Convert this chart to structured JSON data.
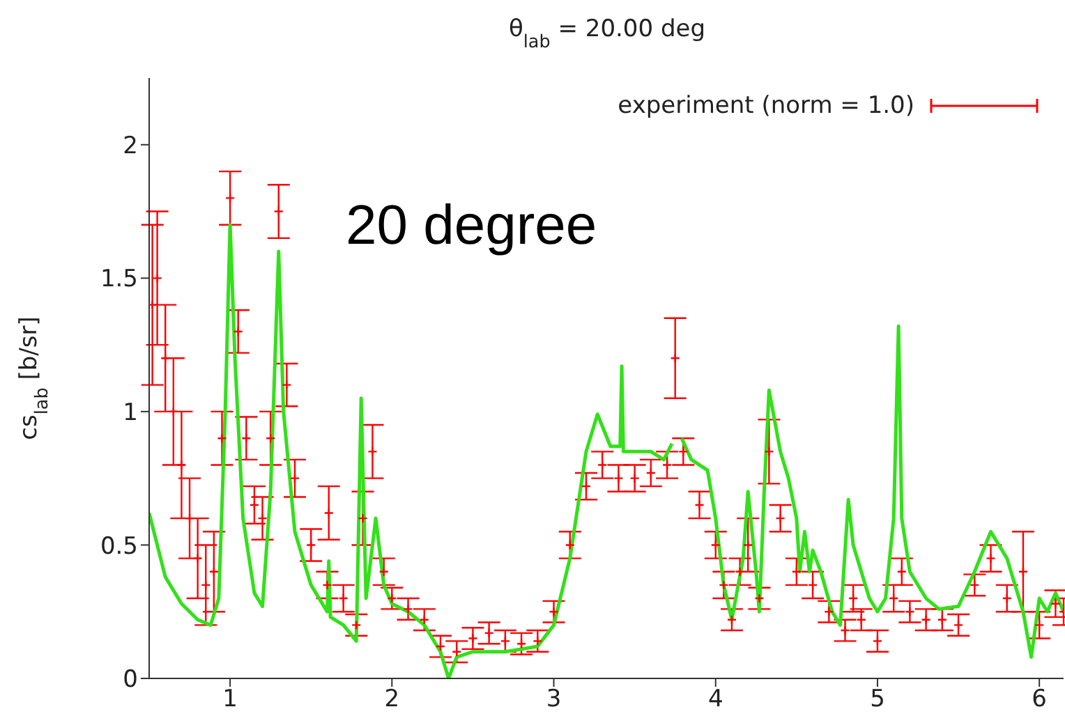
{
  "chart_data": {
    "type": "line",
    "title": "θ$_{lab}$ = 20.00 deg",
    "ylabel": "cs$_{lab}$ [b/sr]",
    "annotations": [
      "20 degree"
    ],
    "xlim": [
      0.5,
      6.15
    ],
    "xticks": [
      1,
      2,
      3,
      4,
      5,
      6
    ],
    "ylim": [
      0,
      2.25
    ],
    "yticks": [
      0,
      0.5,
      1,
      1.5,
      2
    ],
    "grid": false,
    "legend": "top right",
    "series": [
      {
        "name": "experiment (norm = 1.0)",
        "type": "scatter",
        "marker": "cross",
        "color": "#ff0000",
        "x": [
          0.52,
          0.55,
          0.6,
          0.65,
          0.7,
          0.75,
          0.8,
          0.85,
          0.9,
          0.95,
          1.0,
          1.05,
          1.1,
          1.15,
          1.2,
          1.25,
          1.3,
          1.35,
          1.4,
          1.5,
          1.6,
          1.61,
          1.7,
          1.78,
          1.82,
          1.88,
          1.95,
          2.0,
          2.1,
          2.2,
          2.3,
          2.4,
          2.5,
          2.6,
          2.7,
          2.8,
          2.9,
          3.0,
          3.1,
          3.2,
          3.3,
          3.4,
          3.5,
          3.6,
          3.7,
          3.75,
          3.8,
          3.9,
          4.0,
          4.05,
          4.1,
          4.15,
          4.2,
          4.27,
          4.33,
          4.4,
          4.5,
          4.6,
          4.7,
          4.8,
          4.85,
          4.9,
          5.0,
          5.1,
          5.15,
          5.2,
          5.3,
          5.4,
          5.5,
          5.6,
          5.7,
          5.8,
          5.9,
          6.0,
          6.1,
          6.15
        ],
        "values": [
          1.4,
          1.5,
          1.2,
          1.0,
          0.8,
          0.6,
          0.45,
          0.35,
          0.4,
          0.9,
          1.8,
          1.3,
          0.9,
          0.65,
          0.6,
          0.9,
          1.75,
          1.1,
          0.75,
          0.5,
          0.35,
          0.62,
          0.3,
          0.2,
          0.6,
          0.85,
          0.4,
          0.3,
          0.26,
          0.22,
          0.12,
          0.1,
          0.15,
          0.17,
          0.14,
          0.13,
          0.14,
          0.25,
          0.5,
          0.72,
          0.8,
          0.75,
          0.75,
          0.77,
          0.8,
          1.2,
          0.85,
          0.65,
          0.5,
          0.35,
          0.22,
          0.4,
          0.5,
          0.3,
          0.85,
          0.6,
          0.4,
          0.35,
          0.25,
          0.18,
          0.3,
          0.22,
          0.14,
          0.3,
          0.4,
          0.25,
          0.22,
          0.22,
          0.2,
          0.35,
          0.45,
          0.3,
          0.4,
          0.2,
          0.28,
          0.25
        ],
        "errors": [
          0.3,
          0.25,
          0.2,
          0.2,
          0.2,
          0.15,
          0.15,
          0.15,
          0.15,
          0.1,
          0.1,
          0.08,
          0.08,
          0.07,
          0.08,
          0.1,
          0.1,
          0.08,
          0.07,
          0.06,
          0.05,
          0.1,
          0.05,
          0.04,
          0.1,
          0.1,
          0.05,
          0.04,
          0.04,
          0.04,
          0.04,
          0.04,
          0.04,
          0.04,
          0.04,
          0.04,
          0.04,
          0.04,
          0.05,
          0.05,
          0.05,
          0.05,
          0.05,
          0.05,
          0.05,
          0.15,
          0.05,
          0.05,
          0.05,
          0.05,
          0.04,
          0.05,
          0.1,
          0.04,
          0.12,
          0.05,
          0.05,
          0.05,
          0.04,
          0.04,
          0.05,
          0.04,
          0.04,
          0.05,
          0.05,
          0.04,
          0.04,
          0.04,
          0.04,
          0.04,
          0.05,
          0.05,
          0.15,
          0.05,
          0.05,
          0.05
        ]
      },
      {
        "color": "#33e01a",
        "x": [
          0.5,
          0.6,
          0.7,
          0.8,
          0.88,
          0.93,
          0.97,
          1.0,
          1.03,
          1.08,
          1.15,
          1.2,
          1.25,
          1.3,
          1.33,
          1.4,
          1.5,
          1.6,
          1.61,
          1.62,
          1.7,
          1.78,
          1.81,
          1.84,
          1.9,
          1.95,
          2.0,
          2.1,
          2.2,
          2.3,
          2.35,
          2.4,
          2.5,
          2.7,
          2.9,
          3.0,
          3.1,
          3.2,
          3.27,
          3.35,
          3.41,
          3.42,
          3.43,
          3.6,
          3.68,
          3.73,
          3.745,
          3.77,
          3.79,
          3.85,
          3.95,
          4.0,
          4.05,
          4.1,
          4.17,
          4.2,
          4.25,
          4.27,
          4.3,
          4.33,
          4.4,
          4.45,
          4.5,
          4.52,
          4.55,
          4.58,
          4.6,
          4.65,
          4.72,
          4.77,
          4.82,
          4.85,
          4.95,
          5.0,
          5.05,
          5.1,
          5.13,
          5.15,
          5.2,
          5.3,
          5.38,
          5.5,
          5.6,
          5.7,
          5.8,
          5.9,
          5.95,
          6.0,
          6.05,
          6.1,
          6.15
        ],
        "values": [
          0.62,
          0.38,
          0.28,
          0.22,
          0.2,
          0.3,
          1.0,
          1.7,
          1.2,
          0.6,
          0.32,
          0.27,
          0.7,
          1.6,
          1.0,
          0.55,
          0.35,
          0.25,
          0.44,
          0.23,
          0.2,
          0.14,
          1.05,
          0.3,
          0.6,
          0.35,
          0.28,
          0.25,
          0.2,
          0.1,
          0.0,
          0.08,
          0.1,
          0.1,
          0.12,
          0.2,
          0.45,
          0.85,
          0.99,
          0.87,
          0.87,
          1.17,
          0.85,
          0.85,
          0.82,
          0.88,
          null,
          null,
          0.9,
          0.82,
          0.78,
          0.6,
          0.35,
          0.22,
          0.45,
          0.7,
          0.4,
          0.25,
          0.7,
          1.08,
          0.85,
          0.75,
          0.6,
          0.4,
          0.55,
          0.4,
          0.48,
          0.4,
          0.25,
          0.2,
          0.67,
          0.5,
          0.3,
          0.25,
          0.3,
          0.6,
          1.32,
          0.6,
          0.4,
          0.3,
          0.26,
          0.27,
          0.4,
          0.55,
          0.45,
          0.25,
          0.08,
          0.3,
          0.25,
          0.32,
          0.25
        ]
      }
    ]
  }
}
